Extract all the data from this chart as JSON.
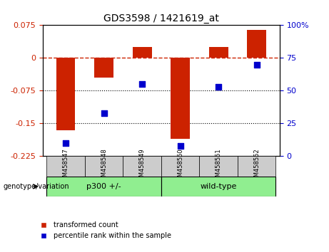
{
  "title": "GDS3598 / 1421619_at",
  "categories": [
    "GSM458547",
    "GSM458548",
    "GSM458549",
    "GSM458550",
    "GSM458551",
    "GSM458552"
  ],
  "red_bars": [
    -0.165,
    -0.045,
    0.025,
    -0.185,
    0.025,
    0.065
  ],
  "blue_dots": [
    10,
    33,
    55,
    8,
    53,
    70
  ],
  "ylim_left": [
    -0.225,
    0.075
  ],
  "ylim_right": [
    0,
    100
  ],
  "yticks_left": [
    0.075,
    0,
    -0.075,
    -0.15,
    -0.225
  ],
  "yticks_right": [
    100,
    75,
    50,
    25,
    0
  ],
  "group1_label": "p300 +/-",
  "group2_label": "wild-type",
  "group1_indices": [
    0,
    1,
    2
  ],
  "group2_indices": [
    3,
    4,
    5
  ],
  "group1_color": "#90EE90",
  "group2_color": "#90EE90",
  "genotype_label": "genotype/variation",
  "legend_red": "transformed count",
  "legend_blue": "percentile rank within the sample",
  "bar_color": "#CC2200",
  "dot_color": "#0000CC",
  "dashed_line_color": "#CC2200",
  "background_plot": "#FFFFFF",
  "background_xtick": "#CCCCCC",
  "dotted_line_color": "#000000"
}
